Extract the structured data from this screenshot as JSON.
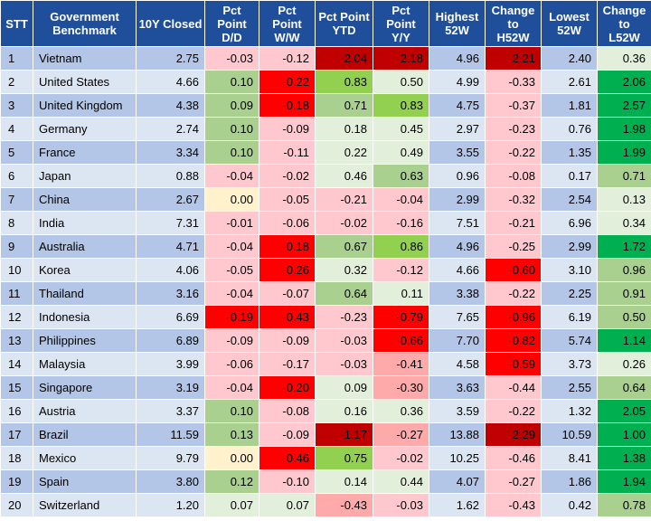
{
  "headers": {
    "stt": "STT",
    "benchmark": [
      "Government",
      "Benchmark"
    ],
    "closed": "10Y Closed",
    "dd": [
      "Pct",
      "Point",
      "D/D"
    ],
    "ww": [
      "Pct",
      "Point",
      "W/W"
    ],
    "ytd": [
      "Pct Point",
      "YTD"
    ],
    "yy": [
      "Pct",
      "Point",
      "Y/Y"
    ],
    "h52": [
      "Highest",
      "52W"
    ],
    "ch52": [
      "Change",
      "to",
      "H52W"
    ],
    "l52": [
      "Lowest",
      "52W"
    ],
    "cl52": [
      "Change to",
      "L52W"
    ]
  },
  "palette": {
    "header": "#1f4e9b",
    "row_odd": "#b4c6e7",
    "row_even": "#dce6f2",
    "neg_dark": "#c00000",
    "neg_red": "#ff0000",
    "neg_pink": "#ffaaaa",
    "neg_light": "#ffc7ce",
    "zero": "#fff2cc",
    "pos_light": "#e2efda",
    "pos_mid": "#c6e0b4",
    "pos_green": "#a9d08e",
    "pos_bright": "#92d050",
    "pos_strong": "#00b050"
  },
  "rows": [
    {
      "stt": "1",
      "country": "Vietnam",
      "closed": "2.75",
      "dd": "-0.03",
      "ww": "-0.12",
      "ytd": "-2.04",
      "yy": "-2.18",
      "h52": "4.96",
      "ch52": "-2.21",
      "l52": "2.40",
      "cl52": "0.36"
    },
    {
      "stt": "2",
      "country": "United States",
      "closed": "4.66",
      "dd": "0.10",
      "ww": "-0.22",
      "ytd": "0.83",
      "yy": "0.50",
      "h52": "4.99",
      "ch52": "-0.33",
      "l52": "2.61",
      "cl52": "2.06"
    },
    {
      "stt": "3",
      "country": "United Kingdom",
      "closed": "4.38",
      "dd": "0.09",
      "ww": "-0.18",
      "ytd": "0.71",
      "yy": "0.83",
      "h52": "4.75",
      "ch52": "-0.37",
      "l52": "1.81",
      "cl52": "2.57"
    },
    {
      "stt": "4",
      "country": "Germany",
      "closed": "2.74",
      "dd": "0.10",
      "ww": "-0.09",
      "ytd": "0.18",
      "yy": "0.45",
      "h52": "2.97",
      "ch52": "-0.23",
      "l52": "0.76",
      "cl52": "1.98"
    },
    {
      "stt": "5",
      "country": "France",
      "closed": "3.34",
      "dd": "0.10",
      "ww": "-0.11",
      "ytd": "0.22",
      "yy": "0.49",
      "h52": "3.55",
      "ch52": "-0.22",
      "l52": "1.35",
      "cl52": "1.99"
    },
    {
      "stt": "6",
      "country": "Japan",
      "closed": "0.88",
      "dd": "-0.04",
      "ww": "-0.02",
      "ytd": "0.46",
      "yy": "0.63",
      "h52": "0.96",
      "ch52": "-0.08",
      "l52": "0.17",
      "cl52": "0.71"
    },
    {
      "stt": "7",
      "country": "China",
      "closed": "2.67",
      "dd": "0.00",
      "ww": "-0.05",
      "ytd": "-0.21",
      "yy": "-0.04",
      "h52": "2.99",
      "ch52": "-0.32",
      "l52": "2.54",
      "cl52": "0.13"
    },
    {
      "stt": "8",
      "country": "India",
      "closed": "7.31",
      "dd": "-0.01",
      "ww": "-0.06",
      "ytd": "-0.02",
      "yy": "-0.16",
      "h52": "7.51",
      "ch52": "-0.21",
      "l52": "6.96",
      "cl52": "0.34"
    },
    {
      "stt": "9",
      "country": "Australia",
      "closed": "4.71",
      "dd": "-0.04",
      "ww": "-0.18",
      "ytd": "0.67",
      "yy": "0.86",
      "h52": "4.96",
      "ch52": "-0.25",
      "l52": "2.99",
      "cl52": "1.72"
    },
    {
      "stt": "10",
      "country": "Korea",
      "closed": "4.06",
      "dd": "-0.05",
      "ww": "-0.26",
      "ytd": "0.32",
      "yy": "-0.12",
      "h52": "4.66",
      "ch52": "-0.60",
      "l52": "3.10",
      "cl52": "0.96"
    },
    {
      "stt": "11",
      "country": "Thailand",
      "closed": "3.16",
      "dd": "-0.04",
      "ww": "-0.07",
      "ytd": "0.64",
      "yy": "0.11",
      "h52": "3.38",
      "ch52": "-0.22",
      "l52": "2.25",
      "cl52": "0.91"
    },
    {
      "stt": "12",
      "country": "Indonesia",
      "closed": "6.69",
      "dd": "-0.19",
      "ww": "-0.43",
      "ytd": "-0.23",
      "yy": "-0.79",
      "h52": "7.65",
      "ch52": "-0.96",
      "l52": "6.19",
      "cl52": "0.50"
    },
    {
      "stt": "13",
      "country": "Philippines",
      "closed": "6.89",
      "dd": "-0.09",
      "ww": "-0.09",
      "ytd": "-0.03",
      "yy": "-0.66",
      "h52": "7.70",
      "ch52": "-0.82",
      "l52": "5.74",
      "cl52": "1.14"
    },
    {
      "stt": "14",
      "country": "Malaysia",
      "closed": "3.99",
      "dd": "-0.06",
      "ww": "-0.17",
      "ytd": "-0.03",
      "yy": "-0.41",
      "h52": "4.58",
      "ch52": "-0.59",
      "l52": "3.73",
      "cl52": "0.26"
    },
    {
      "stt": "15",
      "country": "Singapore",
      "closed": "3.19",
      "dd": "-0.04",
      "ww": "-0.20",
      "ytd": "0.09",
      "yy": "-0.30",
      "h52": "3.63",
      "ch52": "-0.44",
      "l52": "2.55",
      "cl52": "0.64"
    },
    {
      "stt": "16",
      "country": "Austria",
      "closed": "3.37",
      "dd": "0.10",
      "ww": "-0.08",
      "ytd": "0.16",
      "yy": "0.36",
      "h52": "3.59",
      "ch52": "-0.22",
      "l52": "1.32",
      "cl52": "2.05"
    },
    {
      "stt": "17",
      "country": "Brazil",
      "closed": "11.59",
      "dd": "0.13",
      "ww": "-0.09",
      "ytd": "-1.17",
      "yy": "-0.27",
      "h52": "13.88",
      "ch52": "-2.29",
      "l52": "10.59",
      "cl52": "1.00"
    },
    {
      "stt": "18",
      "country": "Mexico",
      "closed": "9.79",
      "dd": "0.00",
      "ww": "-0.46",
      "ytd": "0.75",
      "yy": "-0.02",
      "h52": "10.25",
      "ch52": "-0.46",
      "l52": "8.41",
      "cl52": "1.38"
    },
    {
      "stt": "19",
      "country": "Spain",
      "closed": "3.80",
      "dd": "0.12",
      "ww": "-0.10",
      "ytd": "0.14",
      "yy": "0.44",
      "h52": "4.07",
      "ch52": "-0.27",
      "l52": "1.86",
      "cl52": "1.94"
    },
    {
      "stt": "20",
      "country": "Switzerland",
      "closed": "1.20",
      "dd": "0.07",
      "ww": "0.07",
      "ytd": "-0.43",
      "yy": "-0.03",
      "h52": "1.62",
      "ch52": "-0.43",
      "l52": "0.42",
      "cl52": "0.78"
    }
  ]
}
